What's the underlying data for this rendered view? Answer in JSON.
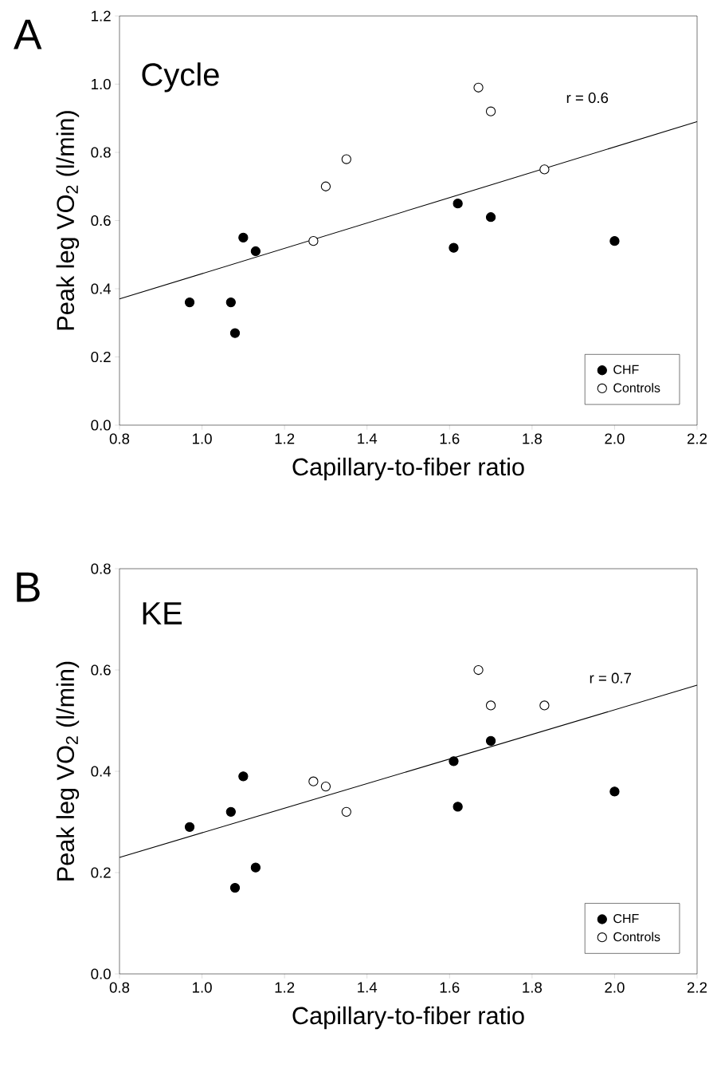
{
  "chart_data": [
    {
      "type": "scatter",
      "title": "Cycle",
      "xlabel": "Capillary-to-fiber ratio",
      "ylabel": "Peak leg VO$_{2}$ (l/min)",
      "annotations": [
        "A",
        "r = 0.6"
      ],
      "xlim": [
        0.8,
        2.2
      ],
      "ylim": [
        0,
        1.2
      ],
      "xticks": [
        {
          "value": 0.8,
          "label": "0.8"
        },
        {
          "value": 1.0,
          "label": "1.0"
        },
        {
          "value": 1.2,
          "label": "1.2"
        },
        {
          "value": 1.4,
          "label": "1.4"
        },
        {
          "value": 1.6,
          "label": "1.6"
        },
        {
          "value": 1.8,
          "label": "1.8"
        },
        {
          "value": 2.0,
          "label": "2.0"
        },
        {
          "value": 2.2,
          "label": "2.2"
        }
      ],
      "yticks": [
        {
          "value": 0,
          "label": "0.0"
        },
        {
          "value": 0.2,
          "label": "0.2"
        },
        {
          "value": 0.4,
          "label": "0.4"
        },
        {
          "value": 0.6,
          "label": "0.6"
        },
        {
          "value": 0.8,
          "label": "0.8"
        },
        {
          "value": 1.0,
          "label": "1.0"
        },
        {
          "value": 1.2,
          "label": "1.2"
        }
      ],
      "legend": "bottom right",
      "series": [
        {
          "name": "CHF",
          "marker": "circle",
          "color": "#000000",
          "x": [
            0.97,
            1.07,
            1.08,
            1.1,
            1.13,
            1.61,
            1.62,
            1.7,
            2.0
          ],
          "values": [
            0.36,
            0.36,
            0.27,
            0.55,
            0.51,
            0.52,
            0.65,
            0.61,
            0.54
          ]
        },
        {
          "name": "Controls",
          "marker": "circle",
          "color": "#ffffff",
          "x": [
            1.27,
            1.3,
            1.35,
            1.67,
            1.7,
            1.83
          ],
          "values": [
            0.54,
            0.7,
            0.78,
            0.99,
            0.92,
            0.75
          ]
        },
        {
          "type": "line",
          "marker": "none",
          "color": "#000000",
          "x": [
            0.8,
            2.2
          ],
          "values": [
            0.37,
            0.89
          ]
        }
      ]
    },
    {
      "type": "scatter",
      "title": "KE",
      "xlabel": "Capillary-to-fiber ratio",
      "ylabel": "Peak leg VO$_{2}$ (l/min)",
      "annotations": [
        "B",
        "r = 0.7"
      ],
      "xlim": [
        0.8,
        2.2
      ],
      "ylim": [
        0,
        0.8
      ],
      "xticks": [
        {
          "value": 0.8,
          "label": "0.8"
        },
        {
          "value": 1.0,
          "label": "1.0"
        },
        {
          "value": 1.2,
          "label": "1.2"
        },
        {
          "value": 1.4,
          "label": "1.4"
        },
        {
          "value": 1.6,
          "label": "1.6"
        },
        {
          "value": 1.8,
          "label": "1.8"
        },
        {
          "value": 2.0,
          "label": "2.0"
        },
        {
          "value": 2.2,
          "label": "2.2"
        }
      ],
      "yticks": [
        {
          "value": 0,
          "label": "0.0"
        },
        {
          "value": 0.2,
          "label": "0.2"
        },
        {
          "value": 0.4,
          "label": "0.4"
        },
        {
          "value": 0.6,
          "label": "0.6"
        },
        {
          "value": 0.8,
          "label": "0.8"
        }
      ],
      "legend": "bottom right",
      "series": [
        {
          "name": "CHF",
          "marker": "circle",
          "color": "#000000",
          "x": [
            0.97,
            1.07,
            1.08,
            1.1,
            1.13,
            1.61,
            1.62,
            1.7,
            2.0
          ],
          "values": [
            0.29,
            0.32,
            0.17,
            0.39,
            0.21,
            0.42,
            0.33,
            0.46,
            0.36
          ]
        },
        {
          "name": "Controls",
          "marker": "circle",
          "color": "#ffffff",
          "x": [
            1.27,
            1.3,
            1.35,
            1.67,
            1.7,
            1.83
          ],
          "values": [
            0.38,
            0.37,
            0.32,
            0.6,
            0.53,
            0.53
          ]
        },
        {
          "type": "line",
          "marker": "none",
          "color": "#000000",
          "x": [
            0.8,
            2.2
          ],
          "values": [
            0.23,
            0.57
          ]
        }
      ]
    }
  ]
}
